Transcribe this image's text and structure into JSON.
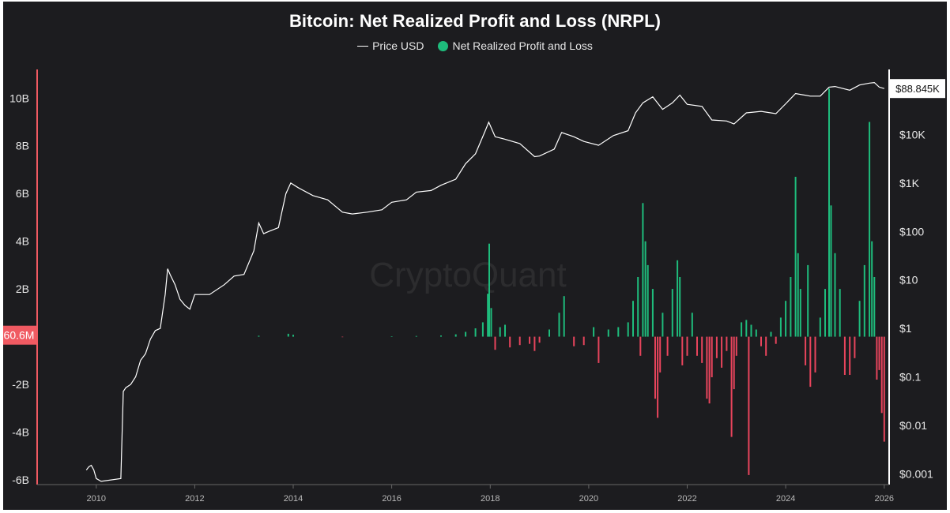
{
  "chart_data": {
    "type": "bar",
    "title": "Bitcoin: Net Realized Profit and Loss (NRPL)",
    "watermark": "CryptoQuant",
    "legend": {
      "placement": "top-center"
    },
    "grid": false,
    "colors": {
      "price": "#ffffff",
      "profit": "#1ebc7c",
      "loss": "#e8445c",
      "marker": "#f05a62",
      "background": "#1c1c1f"
    },
    "x_axis": {
      "range": [
        2008.8,
        2026.1
      ],
      "ticks": [
        "2010",
        "2012",
        "2014",
        "2016",
        "2018",
        "2020",
        "2022",
        "2024",
        "2026"
      ]
    },
    "y_left": {
      "range": [
        -6.2,
        11.2
      ],
      "unit": "B",
      "ticks": [
        "10B",
        "8B",
        "6B",
        "4B",
        "2B",
        "-2B",
        "-4B",
        "-6B"
      ]
    },
    "y_right": {
      "scale": "log",
      "range": [
        0.0006,
        220000
      ],
      "ticks": [
        "$10K",
        "$1K",
        "$100",
        "$10",
        "$1",
        "$0.1",
        "$0.01",
        "$0.001"
      ]
    },
    "current_value_label": "60.6M",
    "current_price_label": "$88.845K",
    "series": [
      {
        "name": "Price USD",
        "type": "line",
        "axis": "right",
        "points": [
          [
            2009.8,
            0.0012
          ],
          [
            2009.85,
            0.0014
          ],
          [
            2009.9,
            0.0015
          ],
          [
            2009.95,
            0.0012
          ],
          [
            2010.0,
            0.0008
          ],
          [
            2010.1,
            0.0007
          ],
          [
            2010.5,
            0.0008
          ],
          [
            2010.55,
            0.05
          ],
          [
            2010.6,
            0.06
          ],
          [
            2010.7,
            0.07
          ],
          [
            2010.8,
            0.1
          ],
          [
            2010.9,
            0.22
          ],
          [
            2011.0,
            0.3
          ],
          [
            2011.1,
            0.6
          ],
          [
            2011.2,
            0.9
          ],
          [
            2011.3,
            1.0
          ],
          [
            2011.4,
            5
          ],
          [
            2011.45,
            17
          ],
          [
            2011.5,
            13
          ],
          [
            2011.6,
            8
          ],
          [
            2011.7,
            4
          ],
          [
            2011.8,
            3
          ],
          [
            2011.9,
            2.5
          ],
          [
            2012.0,
            5
          ],
          [
            2012.3,
            5
          ],
          [
            2012.6,
            8
          ],
          [
            2012.8,
            12
          ],
          [
            2013.0,
            13
          ],
          [
            2013.2,
            40
          ],
          [
            2013.3,
            150
          ],
          [
            2013.4,
            90
          ],
          [
            2013.5,
            100
          ],
          [
            2013.7,
            120
          ],
          [
            2013.85,
            600
          ],
          [
            2013.95,
            1000
          ],
          [
            2014.1,
            800
          ],
          [
            2014.4,
            550
          ],
          [
            2014.7,
            450
          ],
          [
            2015.0,
            250
          ],
          [
            2015.2,
            230
          ],
          [
            2015.5,
            250
          ],
          [
            2015.8,
            280
          ],
          [
            2016.0,
            400
          ],
          [
            2016.3,
            450
          ],
          [
            2016.5,
            650
          ],
          [
            2016.8,
            700
          ],
          [
            2017.0,
            900
          ],
          [
            2017.3,
            1200
          ],
          [
            2017.5,
            2500
          ],
          [
            2017.7,
            4000
          ],
          [
            2017.9,
            12000
          ],
          [
            2017.97,
            18000
          ],
          [
            2018.1,
            9000
          ],
          [
            2018.3,
            8000
          ],
          [
            2018.6,
            6500
          ],
          [
            2018.9,
            3500
          ],
          [
            2019.0,
            3600
          ],
          [
            2019.3,
            5000
          ],
          [
            2019.45,
            11000
          ],
          [
            2019.7,
            9000
          ],
          [
            2019.9,
            7200
          ],
          [
            2020.2,
            6000
          ],
          [
            2020.5,
            9500
          ],
          [
            2020.8,
            12000
          ],
          [
            2020.95,
            28000
          ],
          [
            2021.1,
            45000
          ],
          [
            2021.3,
            60000
          ],
          [
            2021.5,
            33000
          ],
          [
            2021.7,
            45000
          ],
          [
            2021.85,
            65000
          ],
          [
            2022.0,
            42000
          ],
          [
            2022.3,
            38000
          ],
          [
            2022.5,
            20000
          ],
          [
            2022.8,
            19000
          ],
          [
            2022.95,
            16500
          ],
          [
            2023.2,
            28000
          ],
          [
            2023.5,
            30000
          ],
          [
            2023.8,
            27000
          ],
          [
            2024.0,
            43000
          ],
          [
            2024.2,
            70000
          ],
          [
            2024.5,
            62000
          ],
          [
            2024.7,
            62000
          ],
          [
            2024.88,
            95000
          ],
          [
            2025.0,
            98000
          ],
          [
            2025.3,
            82000
          ],
          [
            2025.5,
            105000
          ],
          [
            2025.7,
            115000
          ],
          [
            2025.8,
            118000
          ],
          [
            2025.9,
            95000
          ],
          [
            2026.0,
            88845
          ]
        ]
      },
      {
        "name": "Net Realized Profit and Loss",
        "type": "bar",
        "axis": "left",
        "unit": "B",
        "points": [
          [
            2013.3,
            0.04
          ],
          [
            2013.9,
            0.12
          ],
          [
            2014.0,
            0.08
          ],
          [
            2015.0,
            -0.02
          ],
          [
            2016.0,
            0.02
          ],
          [
            2016.5,
            0.03
          ],
          [
            2017.0,
            0.05
          ],
          [
            2017.3,
            0.1
          ],
          [
            2017.5,
            0.2
          ],
          [
            2017.7,
            0.35
          ],
          [
            2017.85,
            0.6
          ],
          [
            2017.95,
            1.8
          ],
          [
            2017.98,
            3.9
          ],
          [
            2018.02,
            1.2
          ],
          [
            2018.1,
            -0.55
          ],
          [
            2018.2,
            0.4
          ],
          [
            2018.3,
            0.5
          ],
          [
            2018.4,
            -0.45
          ],
          [
            2018.6,
            -0.35
          ],
          [
            2018.8,
            -0.3
          ],
          [
            2018.9,
            -0.6
          ],
          [
            2019.0,
            -0.25
          ],
          [
            2019.2,
            0.3
          ],
          [
            2019.4,
            1.0
          ],
          [
            2019.5,
            1.7
          ],
          [
            2019.7,
            -0.4
          ],
          [
            2019.9,
            -0.35
          ],
          [
            2020.1,
            0.4
          ],
          [
            2020.2,
            -1.1
          ],
          [
            2020.4,
            0.3
          ],
          [
            2020.6,
            0.4
          ],
          [
            2020.8,
            0.6
          ],
          [
            2020.9,
            1.5
          ],
          [
            2021.0,
            2.5
          ],
          [
            2021.05,
            -0.8
          ],
          [
            2021.1,
            5.6
          ],
          [
            2021.15,
            4.0
          ],
          [
            2021.2,
            3.0
          ],
          [
            2021.3,
            2.0
          ],
          [
            2021.35,
            -2.6
          ],
          [
            2021.4,
            -3.4
          ],
          [
            2021.45,
            -1.5
          ],
          [
            2021.5,
            1.0
          ],
          [
            2021.6,
            -0.8
          ],
          [
            2021.7,
            2.0
          ],
          [
            2021.8,
            3.2
          ],
          [
            2021.85,
            2.5
          ],
          [
            2021.9,
            -1.2
          ],
          [
            2022.0,
            -0.8
          ],
          [
            2022.1,
            1.0
          ],
          [
            2022.2,
            -0.8
          ],
          [
            2022.3,
            -1.1
          ],
          [
            2022.4,
            -2.6
          ],
          [
            2022.45,
            -2.8
          ],
          [
            2022.5,
            -1.7
          ],
          [
            2022.6,
            -0.9
          ],
          [
            2022.7,
            -1.3
          ],
          [
            2022.8,
            -0.6
          ],
          [
            2022.9,
            -4.2
          ],
          [
            2022.95,
            -2.2
          ],
          [
            2023.0,
            -0.8
          ],
          [
            2023.1,
            0.6
          ],
          [
            2023.2,
            0.7
          ],
          [
            2023.25,
            -5.8
          ],
          [
            2023.3,
            0.5
          ],
          [
            2023.4,
            0.3
          ],
          [
            2023.5,
            -0.4
          ],
          [
            2023.6,
            -0.8
          ],
          [
            2023.7,
            0.2
          ],
          [
            2023.8,
            -0.3
          ],
          [
            2023.9,
            0.8
          ],
          [
            2024.0,
            1.5
          ],
          [
            2024.1,
            2.5
          ],
          [
            2024.2,
            6.7
          ],
          [
            2024.25,
            3.5
          ],
          [
            2024.3,
            2.0
          ],
          [
            2024.4,
            -1.2
          ],
          [
            2024.45,
            3.0
          ],
          [
            2024.5,
            -2.1
          ],
          [
            2024.6,
            -1.5
          ],
          [
            2024.7,
            0.8
          ],
          [
            2024.8,
            2.0
          ],
          [
            2024.88,
            10.4
          ],
          [
            2024.92,
            5.5
          ],
          [
            2025.0,
            3.5
          ],
          [
            2025.1,
            2.0
          ],
          [
            2025.2,
            -1.6
          ],
          [
            2025.3,
            -1.6
          ],
          [
            2025.4,
            -0.9
          ],
          [
            2025.5,
            1.5
          ],
          [
            2025.6,
            3.0
          ],
          [
            2025.7,
            9.0
          ],
          [
            2025.75,
            4.0
          ],
          [
            2025.8,
            2.5
          ],
          [
            2025.85,
            -1.8
          ],
          [
            2025.9,
            -1.4
          ],
          [
            2025.95,
            -3.2
          ],
          [
            2026.0,
            -4.4
          ]
        ]
      }
    ]
  }
}
